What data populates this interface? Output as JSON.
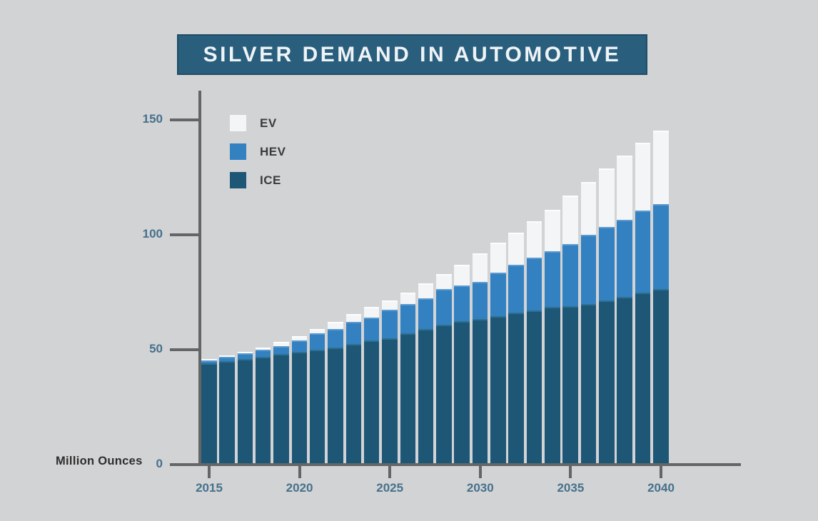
{
  "title": "SILVER DEMAND IN AUTOMOTIVE",
  "colors": {
    "background": "#d2d3d5",
    "banner_fill": "#2a5e7d",
    "banner_border": "#1f4c66",
    "title_text": "#eef3f6",
    "axis": "#636567",
    "tick_label": "#46718c",
    "ev": "#f4f5f6",
    "hev": "#3381c1",
    "ice": "#1e5676"
  },
  "chart_data": {
    "type": "bar",
    "stacked": true,
    "title": "SILVER DEMAND IN AUTOMOTIVE",
    "xlabel": "",
    "ylabel": "Million Ounces",
    "ylim": [
      0,
      150
    ],
    "grid": false,
    "legend_position": "top-left",
    "categories": [
      2015,
      2016,
      2017,
      2018,
      2019,
      2020,
      2021,
      2022,
      2023,
      2024,
      2025,
      2026,
      2027,
      2028,
      2029,
      2030,
      2031,
      2032,
      2033,
      2034,
      2035,
      2036,
      2037,
      2038,
      2039,
      2040
    ],
    "series": [
      {
        "name": "ICE",
        "color": "#1e5676",
        "highlight": "#2e7092",
        "values": [
          44,
          45,
          46,
          47,
          48,
          49,
          50,
          51,
          52.5,
          54,
          55,
          57,
          59,
          61,
          62.5,
          63.5,
          64.5,
          66,
          67,
          68.5,
          69,
          70,
          71.5,
          73,
          75,
          76.5
        ]
      },
      {
        "name": "HEV",
        "color": "#3381c1",
        "highlight": "#5b9bd1",
        "values": [
          1.5,
          2,
          2.5,
          3,
          3.5,
          5,
          7,
          8,
          9.5,
          10,
          12.5,
          13,
          13.5,
          15.5,
          15.5,
          16,
          19,
          21,
          23,
          24.5,
          27,
          30,
          32,
          33.5,
          35.5,
          37
        ]
      },
      {
        "name": "EV",
        "color": "#f4f5f6",
        "highlight": "#fdfdfe",
        "values": [
          0.5,
          0.5,
          0.5,
          1,
          2,
          2,
          2,
          3,
          3.5,
          4.5,
          4,
          5,
          6.5,
          6.5,
          9,
          12.5,
          13,
          14,
          16,
          18,
          21,
          23,
          25.5,
          28,
          29.5,
          32
        ]
      }
    ],
    "y_ticks": [
      {
        "value": 0,
        "label": "0"
      },
      {
        "value": 50,
        "label": "50"
      },
      {
        "value": 100,
        "label": "100"
      },
      {
        "value": 150,
        "label": "150"
      }
    ],
    "x_ticks": [
      {
        "value": 2015,
        "label": "2015"
      },
      {
        "value": 2020,
        "label": "2020"
      },
      {
        "value": 2025,
        "label": "2025"
      },
      {
        "value": 2030,
        "label": "2030"
      },
      {
        "value": 2035,
        "label": "2035"
      },
      {
        "value": 2040,
        "label": "2040"
      }
    ]
  }
}
